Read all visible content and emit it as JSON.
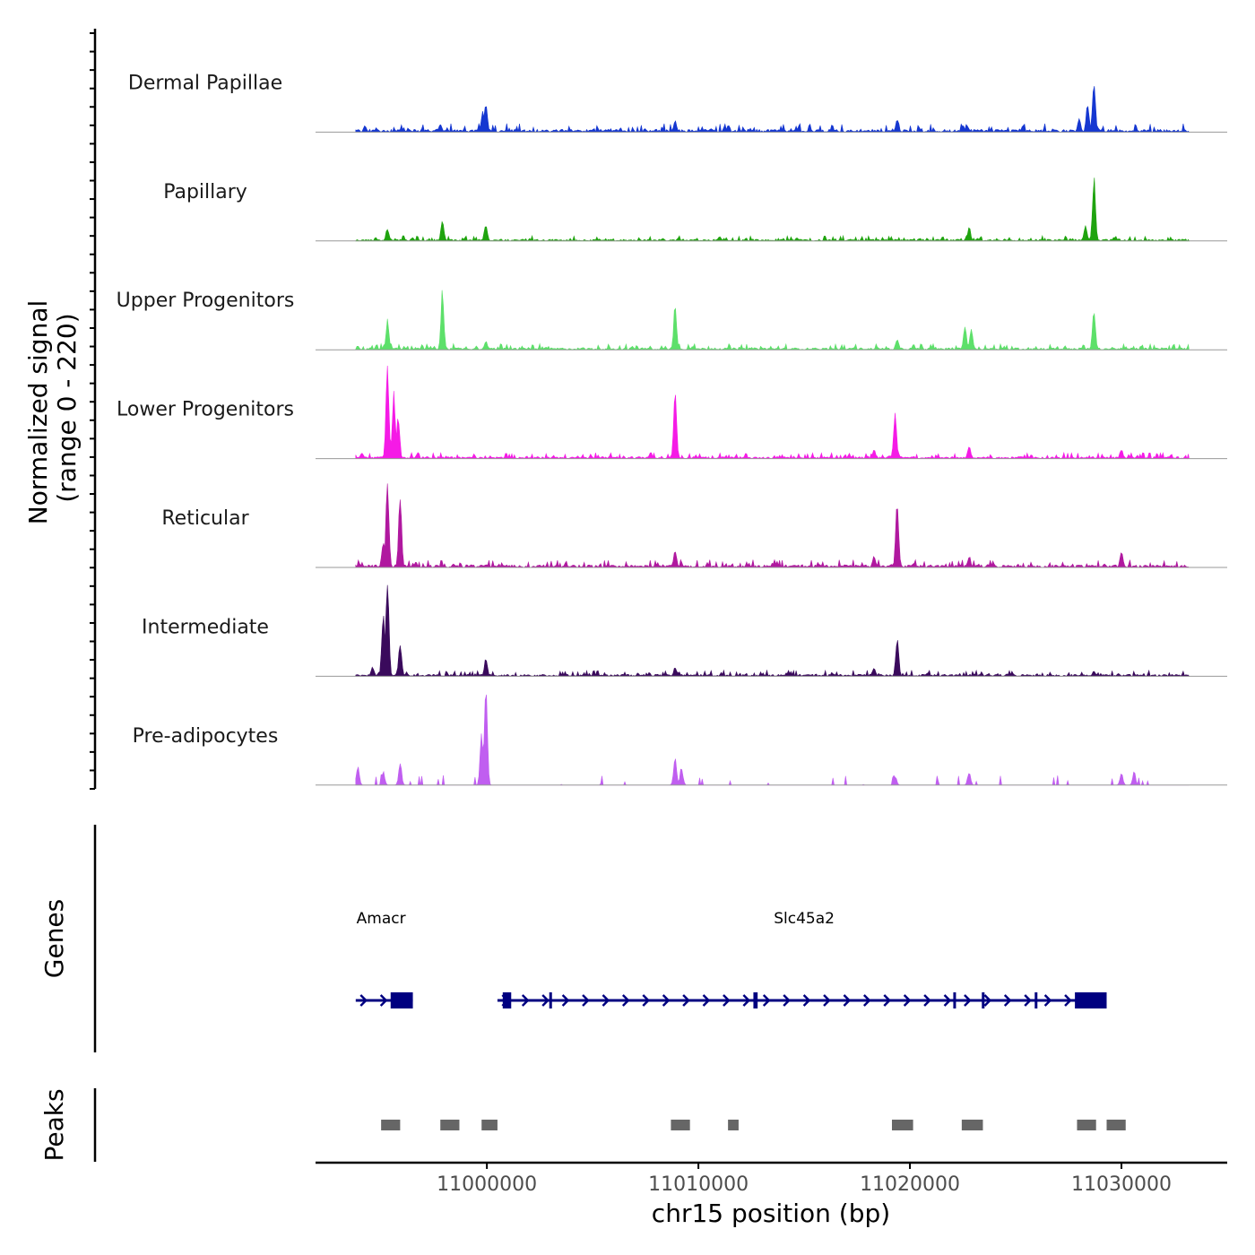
{
  "chart_data": {
    "type": "area",
    "title": "",
    "chromosome": "chr15",
    "xlabel": "chr15 position (bp)",
    "ylabel": "Normalized signal",
    "ylabel_range": "(range 0 - 220)",
    "ylim": [
      0,
      220
    ],
    "xlim": [
      10991900,
      11035000
    ],
    "x_ticks": [
      11000000,
      11010000,
      11020000,
      11030000
    ],
    "x_tick_labels": [
      "11000000",
      "11010000",
      "11020000",
      "11030000"
    ],
    "series": [
      {
        "name": "Dermal Papillae",
        "color": "#1537d1",
        "background": 10,
        "profile": "dermal"
      },
      {
        "name": "Papillary",
        "color": "#1fa30f",
        "background": 6,
        "profile": "papillary"
      },
      {
        "name": "Upper Progenitors",
        "color": "#5de06a",
        "background": 7,
        "profile": "upper"
      },
      {
        "name": "Lower Progenitors",
        "color": "#f51ae6",
        "background": 7,
        "profile": "lower"
      },
      {
        "name": "Reticular",
        "color": "#b0189f",
        "background": 9,
        "profile": "reticular"
      },
      {
        "name": "Intermediate",
        "color": "#3a0a5c",
        "background": 7,
        "profile": "intermediate"
      },
      {
        "name": "Pre-adipocytes",
        "color": "#c05ef0",
        "background": 0,
        "profile": "preadipo"
      }
    ],
    "peaks_by_profile": {
      "dermal": [
        [
          10999950,
          70
        ],
        [
          10999800,
          45
        ],
        [
          10997800,
          18
        ],
        [
          11008900,
          25
        ],
        [
          11019400,
          30
        ],
        [
          11022700,
          15
        ],
        [
          11028700,
          110
        ],
        [
          11028400,
          60
        ],
        [
          11028000,
          30
        ]
      ],
      "papillary": [
        [
          10995300,
          30
        ],
        [
          10997900,
          50
        ],
        [
          10999950,
          40
        ],
        [
          11011000,
          10
        ],
        [
          11022800,
          30
        ],
        [
          11028700,
          140
        ],
        [
          11028300,
          35
        ]
      ],
      "upper": [
        [
          10995300,
          65
        ],
        [
          10997900,
          130
        ],
        [
          10999950,
          20
        ],
        [
          11008900,
          100
        ],
        [
          11019400,
          25
        ],
        [
          11022600,
          55
        ],
        [
          11022900,
          50
        ],
        [
          11028700,
          90
        ]
      ],
      "lower": [
        [
          10995300,
          215
        ],
        [
          10995600,
          150
        ],
        [
          10995800,
          105
        ],
        [
          11008900,
          145
        ],
        [
          11019300,
          105
        ],
        [
          11018300,
          20
        ],
        [
          11022800,
          30
        ],
        [
          11030000,
          20
        ]
      ],
      "reticular": [
        [
          10995300,
          190
        ],
        [
          10995900,
          165
        ],
        [
          10995100,
          60
        ],
        [
          11008900,
          40
        ],
        [
          11019400,
          150
        ],
        [
          11018300,
          25
        ],
        [
          11022800,
          25
        ],
        [
          11030000,
          35
        ]
      ],
      "intermediate": [
        [
          10995300,
          210
        ],
        [
          10995100,
          140
        ],
        [
          10995900,
          80
        ],
        [
          10994600,
          20
        ],
        [
          10999950,
          40
        ],
        [
          11008900,
          20
        ],
        [
          11019400,
          85
        ],
        [
          11018300,
          20
        ],
        [
          11028700,
          12
        ]
      ],
      "preadipo": [
        [
          10999950,
          220
        ],
        [
          10999750,
          110
        ],
        [
          10995900,
          50
        ],
        [
          10995100,
          30
        ],
        [
          10993900,
          40
        ],
        [
          11008900,
          65
        ],
        [
          11009200,
          40
        ],
        [
          11019300,
          20
        ],
        [
          11022800,
          30
        ],
        [
          11030600,
          30
        ],
        [
          11030000,
          25
        ]
      ]
    },
    "genes": [
      {
        "name": "Amacr",
        "start": 10993800,
        "end": 10996500,
        "strand": "+",
        "exons": [
          [
            10995450,
            10996500
          ]
        ],
        "label_position": 10995000
      },
      {
        "name": "Slc45a2",
        "start": 11000500,
        "end": 11029300,
        "strand": "+",
        "exons": [
          [
            11000750,
            11001150
          ],
          [
            11002950,
            11003000
          ],
          [
            11012600,
            11012800
          ],
          [
            11022050,
            11022100
          ],
          [
            11023400,
            11023450
          ],
          [
            11025900,
            11025950
          ],
          [
            11027800,
            11029300
          ]
        ],
        "label_position": 11015000
      }
    ],
    "peak_regions": [
      [
        10995000,
        10995900
      ],
      [
        10997800,
        10998700
      ],
      [
        10999750,
        11000500
      ],
      [
        11008700,
        11009600
      ],
      [
        11011400,
        11011900
      ],
      [
        11019150,
        11020150
      ],
      [
        11022450,
        11023450
      ],
      [
        11027900,
        11028800
      ],
      [
        11029300,
        11030200
      ]
    ],
    "panel_labels": {
      "genes": "Genes",
      "peaks": "Peaks"
    },
    "colors": {
      "gene": "#000080",
      "peak": "#666666",
      "baseline": "#999999",
      "axis": "#000000"
    }
  }
}
